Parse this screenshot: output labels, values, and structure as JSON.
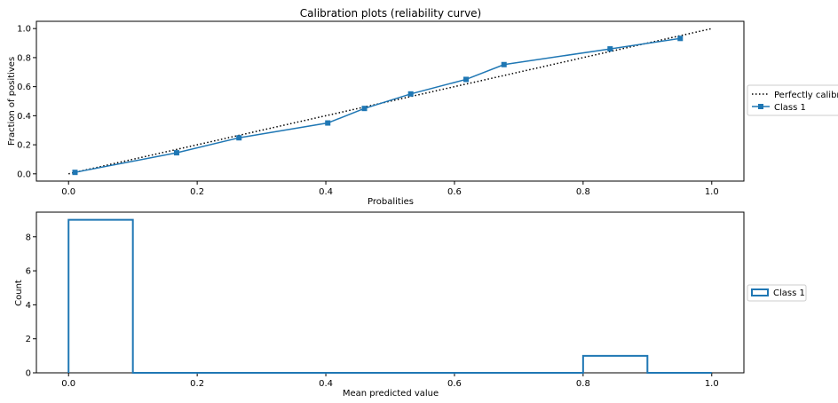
{
  "chart_data": [
    {
      "type": "line",
      "title": "Calibration plots  (reliability curve)",
      "xlabel": "Probalities",
      "ylabel": "Fraction of positives",
      "xlim": [
        -0.05,
        1.05
      ],
      "ylim": [
        -0.05,
        1.05
      ],
      "xticks": [
        "0.0",
        "0.2",
        "0.4",
        "0.6",
        "0.8",
        "1.0"
      ],
      "yticks": [
        "0.0",
        "0.2",
        "0.4",
        "0.6",
        "0.8",
        "1.0"
      ],
      "grid": false,
      "legend_position": "right, outside plot",
      "series": [
        {
          "name": "Perfectly calibrated",
          "style": "dotted",
          "color": "#000000",
          "x": [
            0.0,
            1.0
          ],
          "y": [
            0.0,
            1.0
          ]
        },
        {
          "name": "Class 1",
          "style": "solid-square-markers",
          "color": "#1f77b4",
          "x": [
            0.01,
            0.168,
            0.265,
            0.403,
            0.46,
            0.532,
            0.618,
            0.677,
            0.842,
            0.951
          ],
          "y": [
            0.01,
            0.145,
            0.248,
            0.35,
            0.45,
            0.55,
            0.65,
            0.752,
            0.86,
            0.932
          ]
        }
      ]
    },
    {
      "type": "bar",
      "title": "",
      "xlabel": "Mean predicted value",
      "ylabel": "Count",
      "xlim": [
        -0.05,
        1.05
      ],
      "ylim": [
        0,
        9.45
      ],
      "xticks": [
        "0.0",
        "0.2",
        "0.4",
        "0.6",
        "0.8",
        "1.0"
      ],
      "yticks": [
        "0",
        "2",
        "4",
        "6",
        "8"
      ],
      "grid": false,
      "legend_position": "right, outside plot",
      "histtype": "step",
      "series": [
        {
          "name": "Class 1",
          "color": "#1f77b4",
          "bin_edges": [
            0.0,
            0.1,
            0.2,
            0.3,
            0.4,
            0.5,
            0.6,
            0.7,
            0.8,
            0.9,
            1.0
          ],
          "counts": [
            9,
            0,
            0,
            0,
            0,
            0,
            0,
            0,
            1,
            0
          ]
        }
      ]
    }
  ]
}
